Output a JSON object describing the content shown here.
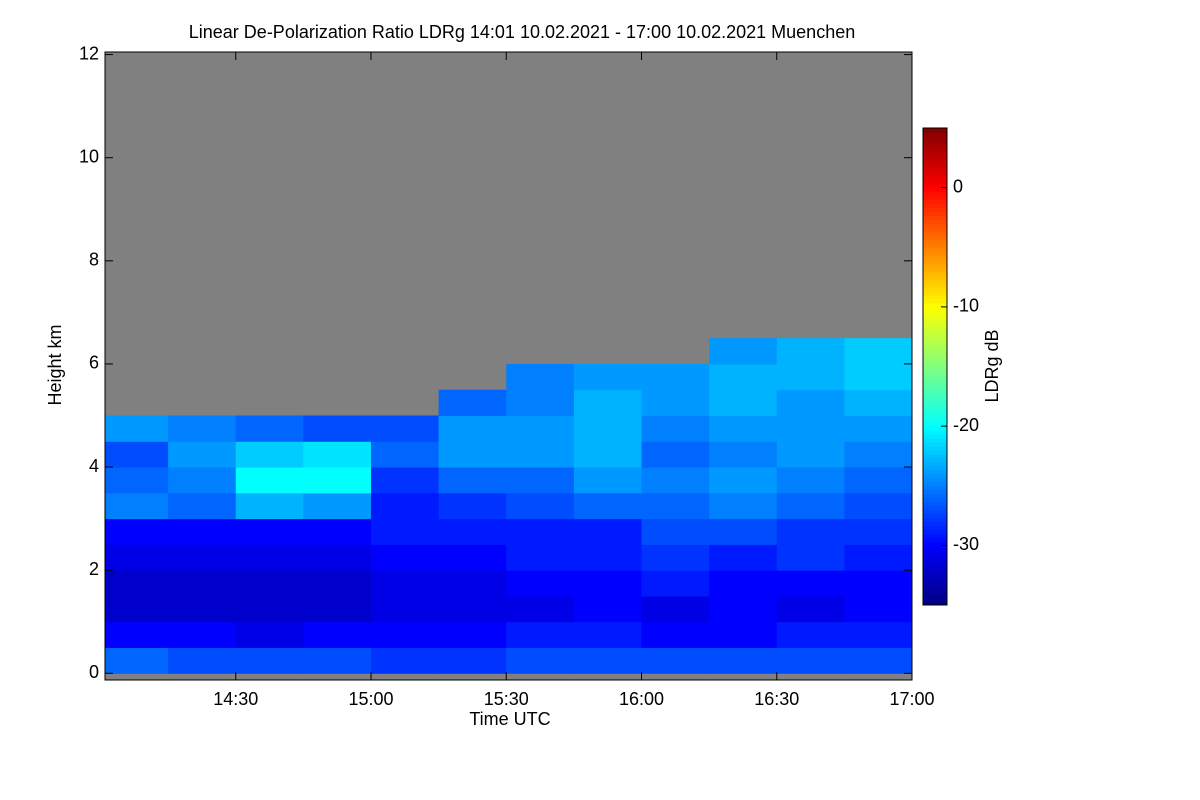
{
  "chart_data": {
    "type": "heatmap",
    "title": "Linear De-Polarization Ratio LDRg   14:01 10.02.2021 - 17:00 10.02.2021 Muenchen",
    "x_label": "Time UTC",
    "y_label": "Height km",
    "colorbar_label": "LDRg dB",
    "xlim": [
      14.0167,
      17.0
    ],
    "xticks": [
      {
        "value": 14.5,
        "label": "14:30"
      },
      {
        "value": 15.0,
        "label": "15:00"
      },
      {
        "value": 15.5,
        "label": "15:30"
      },
      {
        "value": 16.0,
        "label": "16:00"
      },
      {
        "value": 16.5,
        "label": "16:30"
      },
      {
        "value": 17.0,
        "label": "17:00"
      }
    ],
    "ylim": [
      -0.13,
      12.05
    ],
    "yticks": [
      0,
      2,
      4,
      6,
      8,
      10,
      12
    ],
    "zlim": [
      -35,
      5
    ],
    "zticks": [
      -30,
      -20,
      -10,
      0
    ],
    "colormap": "jet",
    "nodata_color": "#808080",
    "x_bins": [
      14.0167,
      14.25,
      14.5,
      14.75,
      15.0,
      15.25,
      15.5,
      15.75,
      16.0,
      16.25,
      16.5,
      16.75,
      17.0
    ],
    "y_bins": [
      0,
      0.5,
      1,
      1.5,
      2,
      2.5,
      3,
      3.5,
      4,
      4.5,
      5,
      5.5,
      6,
      6.5
    ],
    "z": [
      [
        -26,
        -27,
        -27,
        -27,
        -28,
        -28,
        -27,
        -27,
        -27,
        -27,
        -27,
        -27
      ],
      [
        -30,
        -30,
        -31,
        -30,
        -30,
        -30,
        -29,
        -29,
        -30,
        -30,
        -29,
        -29
      ],
      [
        -32,
        -32,
        -32,
        -32,
        -31,
        -31,
        -31,
        -30,
        -31,
        -30,
        -31,
        -30
      ],
      [
        -32,
        -32,
        -32,
        -32,
        -31,
        -31,
        -30,
        -30,
        -29,
        -30,
        -30,
        -30
      ],
      [
        -31,
        -31,
        -31,
        -31,
        -30,
        -30,
        -29,
        -29,
        -28,
        -29,
        -28,
        -29
      ],
      [
        -30,
        -30,
        -30,
        -30,
        -29,
        -29,
        -29,
        -29,
        -27,
        -27,
        -28,
        -28
      ],
      [
        -25,
        -26,
        -23,
        -24,
        -29,
        -28,
        -27,
        -26,
        -26,
        -25,
        -26,
        -27
      ],
      [
        -26,
        -25,
        -20,
        -20,
        -28,
        -26,
        -26,
        -24,
        -25,
        -24,
        -25,
        -26
      ],
      [
        -27,
        -24,
        -22,
        -21,
        -26,
        -24,
        -24,
        -23,
        -26,
        -25,
        -24,
        -25
      ],
      [
        -24,
        -25,
        -26,
        -27,
        -27,
        -24,
        -24,
        -23,
        -25,
        -24,
        -24,
        -24
      ],
      [
        null,
        null,
        null,
        null,
        null,
        -26,
        -25,
        -23,
        -24,
        -23,
        -24,
        -23
      ],
      [
        null,
        null,
        null,
        null,
        null,
        null,
        -25,
        -24,
        -24,
        -23,
        -23,
        -22
      ],
      [
        null,
        null,
        null,
        null,
        null,
        null,
        null,
        null,
        null,
        -24,
        -23,
        -22
      ]
    ]
  }
}
